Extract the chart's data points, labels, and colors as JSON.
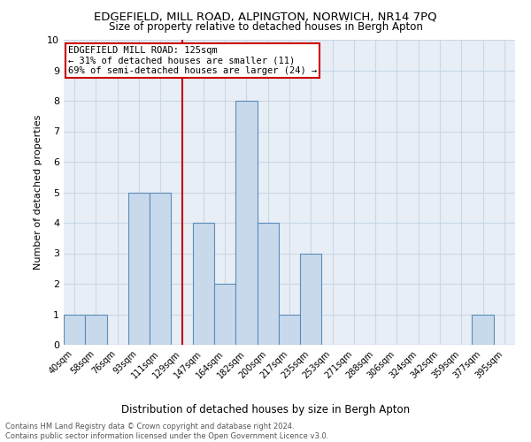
{
  "title": "EDGEFIELD, MILL ROAD, ALPINGTON, NORWICH, NR14 7PQ",
  "subtitle": "Size of property relative to detached houses in Bergh Apton",
  "xlabel": "Distribution of detached houses by size in Bergh Apton",
  "ylabel": "Number of detached properties",
  "footnote1": "Contains HM Land Registry data © Crown copyright and database right 2024.",
  "footnote2": "Contains public sector information licensed under the Open Government Licence v3.0.",
  "bin_labels": [
    "40sqm",
    "58sqm",
    "76sqm",
    "93sqm",
    "111sqm",
    "129sqm",
    "147sqm",
    "164sqm",
    "182sqm",
    "200sqm",
    "217sqm",
    "235sqm",
    "253sqm",
    "271sqm",
    "288sqm",
    "306sqm",
    "324sqm",
    "342sqm",
    "359sqm",
    "377sqm",
    "395sqm"
  ],
  "bar_values": [
    1,
    1,
    0,
    5,
    5,
    0,
    4,
    2,
    8,
    4,
    1,
    3,
    0,
    0,
    0,
    0,
    0,
    0,
    0,
    1,
    0
  ],
  "bar_color": "#c9d9ec",
  "bar_edge_color": "#5b8db8",
  "property_bin_index": 5,
  "vline_color": "#cc0000",
  "annotation_text": "EDGEFIELD MILL ROAD: 125sqm\n← 31% of detached houses are smaller (11)\n69% of semi-detached houses are larger (24) →",
  "annotation_box_color": "#cc0000",
  "ylim": [
    0,
    10
  ],
  "grid_color": "#c8d8e8",
  "background_color": "#e8eef5"
}
